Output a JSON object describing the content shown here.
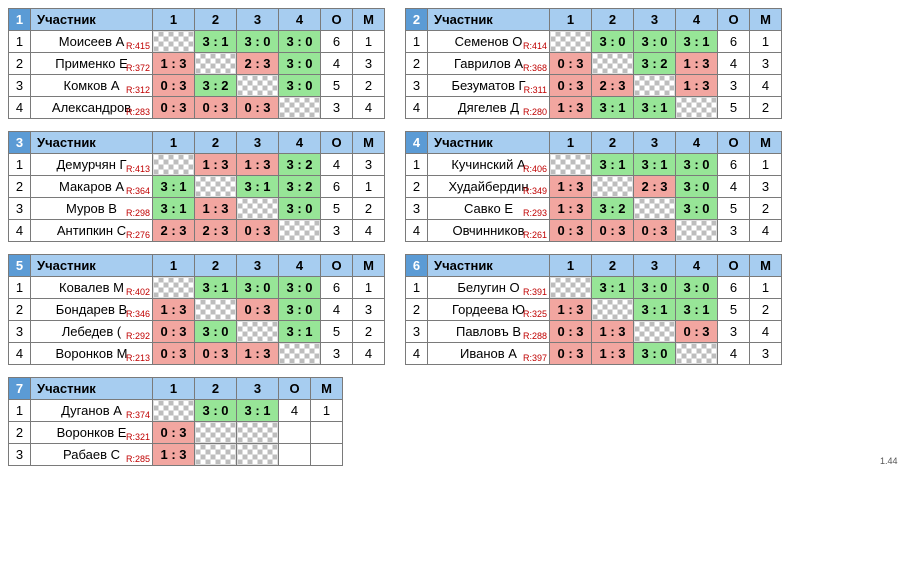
{
  "version": "1.44",
  "header_labels": {
    "player": "Участник",
    "pts": "О",
    "place": "М"
  },
  "colors": {
    "header_bg": "#a7cdf0",
    "groupno_bg": "#5b9bd5",
    "groupno_fg": "#ffffff",
    "win_bg": "#97e597",
    "lose_bg": "#f2a6a0",
    "border": "#7a7a7a",
    "rating": "#c00000"
  },
  "groups": [
    {
      "no": 1,
      "size": 4,
      "players": [
        {
          "name": "Моисеев А",
          "rating": 415,
          "cells": [
            null,
            "3 : 1",
            "3 : 0",
            "3 : 0"
          ],
          "pts": 6,
          "place": 1
        },
        {
          "name": "Применко Е",
          "rating": 372,
          "cells": [
            "1 : 3",
            null,
            "2 : 3",
            "3 : 0"
          ],
          "pts": 4,
          "place": 3
        },
        {
          "name": "Комков А",
          "rating": 312,
          "cells": [
            "0 : 3",
            "3 : 2",
            null,
            "3 : 0"
          ],
          "pts": 5,
          "place": 2
        },
        {
          "name": "Александров",
          "rating": 283,
          "cells": [
            "0 : 3",
            "0 : 3",
            "0 : 3",
            null
          ],
          "pts": 3,
          "place": 4
        }
      ]
    },
    {
      "no": 2,
      "size": 4,
      "players": [
        {
          "name": "Семенов О",
          "rating": 414,
          "cells": [
            null,
            "3 : 0",
            "3 : 0",
            "3 : 1"
          ],
          "pts": 6,
          "place": 1
        },
        {
          "name": "Гаврилов А",
          "rating": 368,
          "cells": [
            "0 : 3",
            null,
            "3 : 2",
            "1 : 3"
          ],
          "pts": 4,
          "place": 3
        },
        {
          "name": "Безуматов Г",
          "rating": 311,
          "cells": [
            "0 : 3",
            "2 : 3",
            null,
            "1 : 3"
          ],
          "pts": 3,
          "place": 4
        },
        {
          "name": "Дягелев Д",
          "rating": 280,
          "cells": [
            "1 : 3",
            "3 : 1",
            "3 : 1",
            null
          ],
          "pts": 5,
          "place": 2
        }
      ]
    },
    {
      "no": 3,
      "size": 4,
      "players": [
        {
          "name": "Демурчян Г",
          "rating": 413,
          "cells": [
            null,
            "1 : 3",
            "1 : 3",
            "3 : 2"
          ],
          "pts": 4,
          "place": 3
        },
        {
          "name": "Макаров А",
          "rating": 364,
          "cells": [
            "3 : 1",
            null,
            "3 : 1",
            "3 : 2"
          ],
          "pts": 6,
          "place": 1
        },
        {
          "name": "Муров В",
          "rating": 298,
          "cells": [
            "3 : 1",
            "1 : 3",
            null,
            "3 : 0"
          ],
          "pts": 5,
          "place": 2
        },
        {
          "name": "Антипкин С",
          "rating": 276,
          "cells": [
            "2 : 3",
            "2 : 3",
            "0 : 3",
            null
          ],
          "pts": 3,
          "place": 4
        }
      ]
    },
    {
      "no": 4,
      "size": 4,
      "players": [
        {
          "name": "Кучинский А",
          "rating": 406,
          "cells": [
            null,
            "3 : 1",
            "3 : 1",
            "3 : 0"
          ],
          "pts": 6,
          "place": 1
        },
        {
          "name": "Худайбердин",
          "rating": 349,
          "cells": [
            "1 : 3",
            null,
            "2 : 3",
            "3 : 0"
          ],
          "pts": 4,
          "place": 3
        },
        {
          "name": "Савко Е",
          "rating": 293,
          "cells": [
            "1 : 3",
            "3 : 2",
            null,
            "3 : 0"
          ],
          "pts": 5,
          "place": 2
        },
        {
          "name": "Овчинников",
          "rating": 261,
          "cells": [
            "0 : 3",
            "0 : 3",
            "0 : 3",
            null
          ],
          "pts": 3,
          "place": 4
        }
      ]
    },
    {
      "no": 5,
      "size": 4,
      "players": [
        {
          "name": "Ковалев М",
          "rating": 402,
          "cells": [
            null,
            "3 : 1",
            "3 : 0",
            "3 : 0"
          ],
          "pts": 6,
          "place": 1
        },
        {
          "name": "Бондарев В",
          "rating": 346,
          "cells": [
            "1 : 3",
            null,
            "0 : 3",
            "3 : 0"
          ],
          "pts": 4,
          "place": 3
        },
        {
          "name": "Лебедев (",
          "rating": 292,
          "cells": [
            "0 : 3",
            "3 : 0",
            null,
            "3 : 1"
          ],
          "pts": 5,
          "place": 2
        },
        {
          "name": "Воронков М",
          "rating": 213,
          "cells": [
            "0 : 3",
            "0 : 3",
            "1 : 3",
            null
          ],
          "pts": 3,
          "place": 4
        }
      ]
    },
    {
      "no": 6,
      "size": 4,
      "players": [
        {
          "name": "Белугин О",
          "rating": 391,
          "cells": [
            null,
            "3 : 1",
            "3 : 0",
            "3 : 0"
          ],
          "pts": 6,
          "place": 1
        },
        {
          "name": "Гордеева Ю",
          "rating": 325,
          "cells": [
            "1 : 3",
            null,
            "3 : 1",
            "3 : 1"
          ],
          "pts": 5,
          "place": 2
        },
        {
          "name": "Павловъ В",
          "rating": 288,
          "cells": [
            "0 : 3",
            "1 : 3",
            null,
            "0 : 3"
          ],
          "pts": 3,
          "place": 4
        },
        {
          "name": "Иванов А",
          "rating": 397,
          "cells": [
            "0 : 3",
            "1 : 3",
            "3 : 0",
            null
          ],
          "pts": 4,
          "place": 3
        }
      ]
    },
    {
      "no": 7,
      "size": 3,
      "players": [
        {
          "name": "Дуганов А",
          "rating": 374,
          "cells": [
            null,
            "3 : 0",
            "3 : 1"
          ],
          "pts": 4,
          "place": 1
        },
        {
          "name": "Воронков Е",
          "rating": 321,
          "cells": [
            "0 : 3",
            null,
            null
          ],
          "pts": "",
          "place": ""
        },
        {
          "name": "Рабаев С",
          "rating": 285,
          "cells": [
            "1 : 3",
            null,
            null
          ],
          "pts": "",
          "place": ""
        }
      ]
    }
  ]
}
